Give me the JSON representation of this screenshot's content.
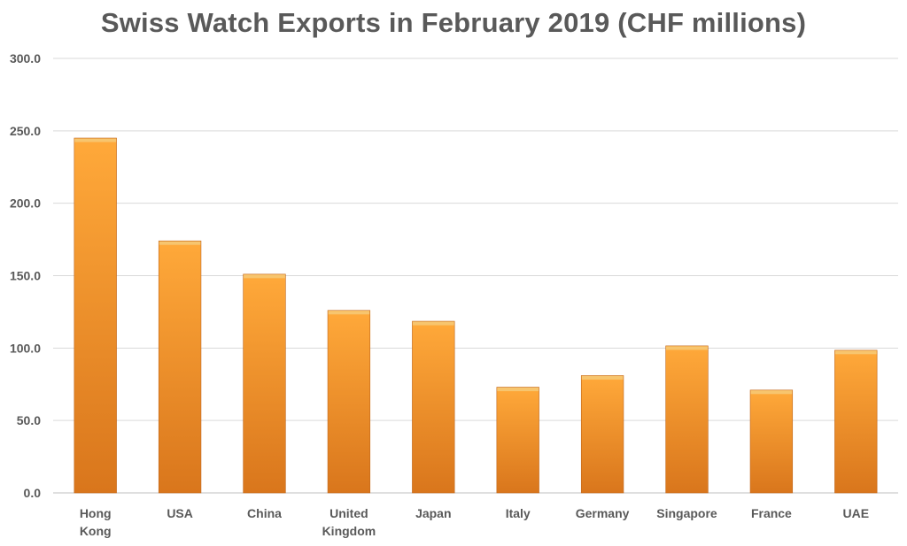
{
  "chart_data": {
    "type": "bar",
    "title": "Swiss Watch Exports in February 2019 (CHF millions)",
    "xlabel": "",
    "ylabel": "",
    "categories": [
      [
        "Hong",
        "Kong"
      ],
      [
        "USA"
      ],
      [
        "China"
      ],
      [
        "United",
        "Kingdom"
      ],
      [
        "Japan"
      ],
      [
        "Italy"
      ],
      [
        "Germany"
      ],
      [
        "Singapore"
      ],
      [
        "France"
      ],
      [
        "UAE"
      ]
    ],
    "values": [
      245.0,
      174.0,
      151.0,
      126.0,
      118.5,
      73.0,
      81.0,
      101.5,
      71.0,
      98.5
    ],
    "ylim": [
      0,
      300
    ],
    "yticks": [
      "0.0",
      "50.0",
      "100.0",
      "150.0",
      "200.0",
      "250.0",
      "300.0"
    ],
    "grid": true,
    "legend": "none",
    "colors": {
      "bar_top": "#FFA93A",
      "bar_bottom": "#D9761C",
      "bar_cap": "#F7C56E",
      "bar_edge": "#C0661A",
      "grid": "#D9D9D9",
      "axis": "#BFBFBF",
      "text": "#595959"
    }
  }
}
